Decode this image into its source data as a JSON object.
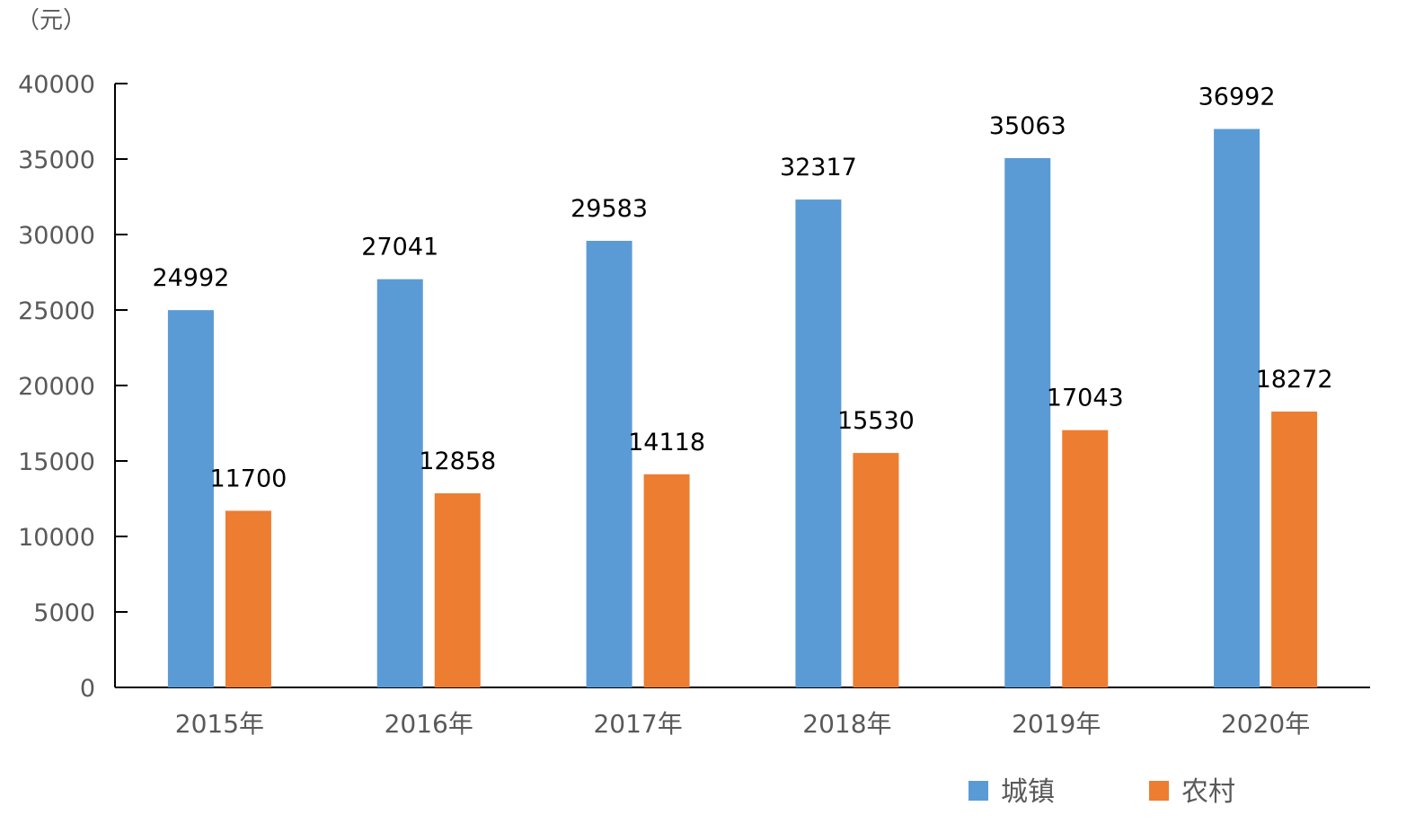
{
  "chart_data": {
    "type": "bar",
    "unit_label": "（元）",
    "categories": [
      "2015年",
      "2016年",
      "2017年",
      "2018年",
      "2019年",
      "2020年"
    ],
    "series": [
      {
        "name": "城镇",
        "color": "#5B9BD5",
        "values": [
          24992,
          27041,
          29583,
          32317,
          35063,
          36992
        ]
      },
      {
        "name": "农村",
        "color": "#ED7D31",
        "values": [
          11700,
          12858,
          14118,
          15530,
          17043,
          18272
        ]
      }
    ],
    "ylim": [
      0,
      40000
    ],
    "yticks": [
      0,
      5000,
      10000,
      15000,
      20000,
      25000,
      30000,
      35000,
      40000
    ],
    "grid": false,
    "legend_position": "bottom-right"
  }
}
